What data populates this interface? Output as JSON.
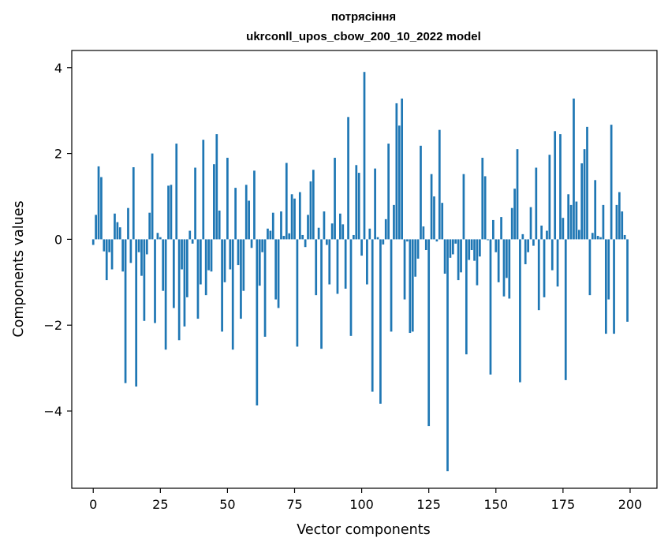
{
  "chart_data": {
    "type": "bar",
    "title_line1": "потрясіння",
    "title_line2": "ukrconll_upos_cbow_200_10_2022 model",
    "xlabel": "Vector components",
    "ylabel": "Components values",
    "xlim": [
      -8,
      210
    ],
    "ylim": [
      -5.8,
      4.4
    ],
    "xticks": [
      0,
      25,
      50,
      75,
      100,
      125,
      150,
      175,
      200
    ],
    "yticks": [
      -4,
      -2,
      0,
      2,
      4
    ],
    "ytick_labels": [
      "−4",
      "−2",
      "0",
      "2",
      "4"
    ],
    "bar_color": "#1f77b4",
    "grid": false,
    "values": [
      -0.13,
      0.57,
      1.7,
      1.45,
      -0.28,
      -0.95,
      -0.3,
      -0.7,
      0.6,
      0.4,
      0.28,
      -0.75,
      -3.35,
      0.73,
      -0.55,
      1.68,
      -3.43,
      -0.3,
      -0.85,
      -1.9,
      -0.35,
      0.62,
      2.0,
      -1.95,
      0.15,
      0.05,
      -1.2,
      -2.57,
      1.25,
      1.27,
      -1.6,
      2.23,
      -2.35,
      -0.7,
      -2.03,
      -1.35,
      0.2,
      -0.1,
      1.67,
      -1.85,
      -1.05,
      2.32,
      -1.3,
      -0.72,
      -0.75,
      1.75,
      2.45,
      0.67,
      -2.15,
      -1.0,
      1.9,
      -0.7,
      -2.57,
      1.2,
      -0.6,
      -1.85,
      -1.2,
      1.27,
      0.9,
      -0.2,
      1.6,
      -3.87,
      -1.08,
      -0.3,
      -2.27,
      0.25,
      0.2,
      0.62,
      -1.4,
      -1.6,
      0.65,
      0.08,
      1.78,
      0.14,
      1.05,
      0.95,
      -2.5,
      1.1,
      0.1,
      -0.18,
      0.57,
      1.35,
      1.62,
      -1.3,
      0.27,
      -2.55,
      0.65,
      -0.13,
      -1.05,
      0.37,
      1.9,
      -1.27,
      0.6,
      0.35,
      -1.15,
      2.85,
      -2.25,
      0.1,
      1.73,
      1.55,
      -0.38,
      3.9,
      -1.05,
      0.25,
      -3.55,
      1.65,
      0.05,
      -3.83,
      -0.12,
      0.47,
      2.23,
      -2.15,
      0.8,
      3.17,
      2.65,
      3.28,
      -1.4,
      -0.05,
      -2.18,
      -2.15,
      -0.87,
      -0.45,
      2.18,
      0.3,
      -0.25,
      -4.35,
      1.52,
      1.0,
      -0.05,
      2.55,
      0.85,
      -0.8,
      -5.4,
      -0.43,
      -0.35,
      -0.1,
      -0.95,
      -0.77,
      1.52,
      -2.68,
      -0.48,
      -0.25,
      -0.5,
      -1.07,
      -0.4,
      1.9,
      1.47,
      -0.02,
      -3.15,
      0.45,
      -0.3,
      -1.0,
      0.52,
      -1.33,
      -0.9,
      -1.38,
      0.73,
      1.18,
      2.1,
      -3.33,
      0.12,
      -0.58,
      -0.3,
      0.75,
      -0.15,
      1.67,
      -1.65,
      0.32,
      -1.35,
      0.2,
      1.97,
      -0.72,
      2.52,
      -1.1,
      2.45,
      0.5,
      -3.28,
      1.05,
      0.8,
      3.28,
      0.88,
      0.22,
      1.77,
      2.1,
      2.62,
      -1.3,
      0.15,
      1.38,
      0.08,
      0.05,
      0.8,
      -2.2,
      -1.4,
      2.67,
      -2.2,
      0.8,
      1.1,
      0.65,
      0.1,
      -1.92
    ]
  }
}
